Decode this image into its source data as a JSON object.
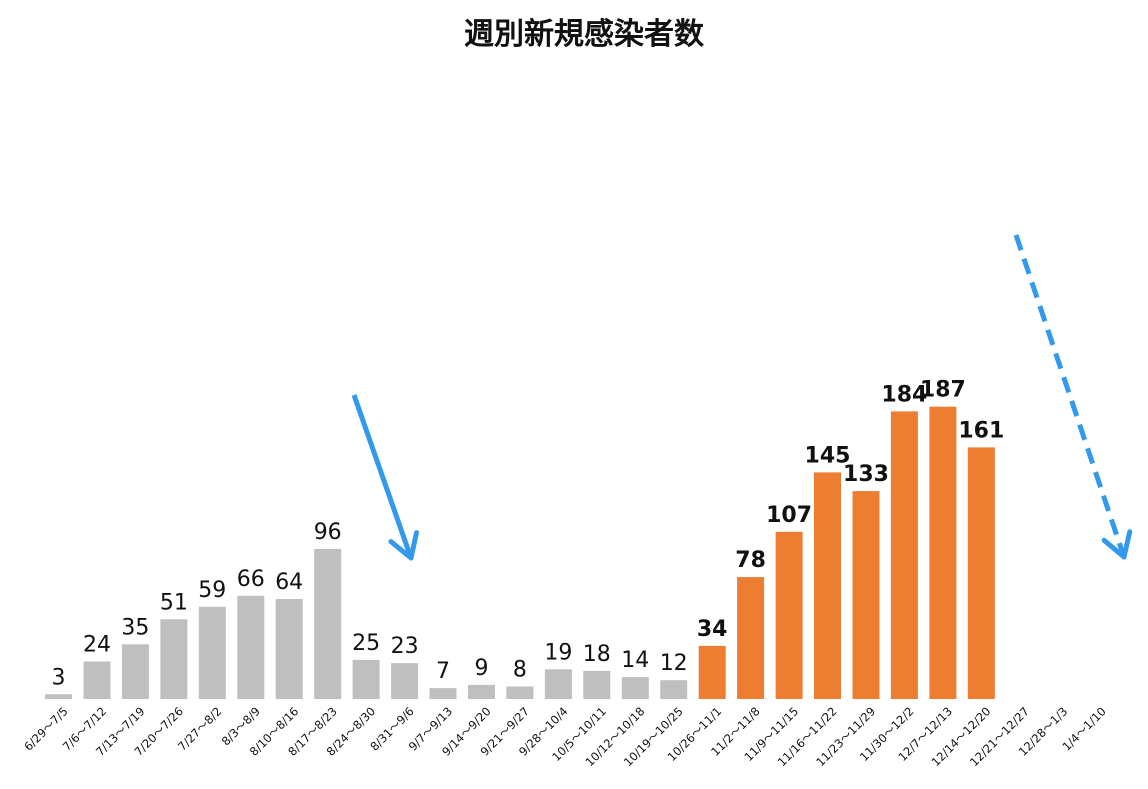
{
  "chart_data": {
    "type": "bar",
    "title": "週別新規感染者数",
    "xlabel": "",
    "ylabel": "",
    "ylim": [
      0,
      200
    ],
    "grid": false,
    "categories": [
      "6/29～7/5",
      "7/6～7/12",
      "7/13～7/19",
      "7/20～7/26",
      "7/27～8/2",
      "8/3～8/9",
      "8/10～8/16",
      "8/17～8/23",
      "8/24～8/30",
      "8/31～9/6",
      "9/7～9/13",
      "9/14～9/20",
      "9/21～9/27",
      "9/28～10/4",
      "10/5～10/11",
      "10/12～10/18",
      "10/19～10/25",
      "10/26～11/1",
      "11/2～11/8",
      "11/9～11/15",
      "11/16～11/22",
      "11/23～11/29",
      "11/30～12/2",
      "12/7～12/13",
      "12/14～12/20",
      "12/21～12/27",
      "12/28～1/3",
      "1/4～1/10"
    ],
    "values": [
      3,
      24,
      35,
      51,
      59,
      66,
      64,
      96,
      25,
      23,
      7,
      9,
      8,
      19,
      18,
      14,
      12,
      34,
      78,
      107,
      145,
      133,
      184,
      187,
      161,
      null,
      null,
      null
    ],
    "highlight_from_index": 17,
    "colors": {
      "normal_bar": "#bfbfbf",
      "highlight_bar": "#ed7d31",
      "normal_label": "#111111",
      "highlight_label": "#ff0000",
      "arrow": "#3399ee"
    },
    "annotations": [
      {
        "type": "arrow",
        "style": "solid",
        "from_index": 8,
        "direction": "down"
      },
      {
        "type": "arrow",
        "style": "dashed",
        "from_index": 25,
        "direction": "down"
      }
    ]
  }
}
